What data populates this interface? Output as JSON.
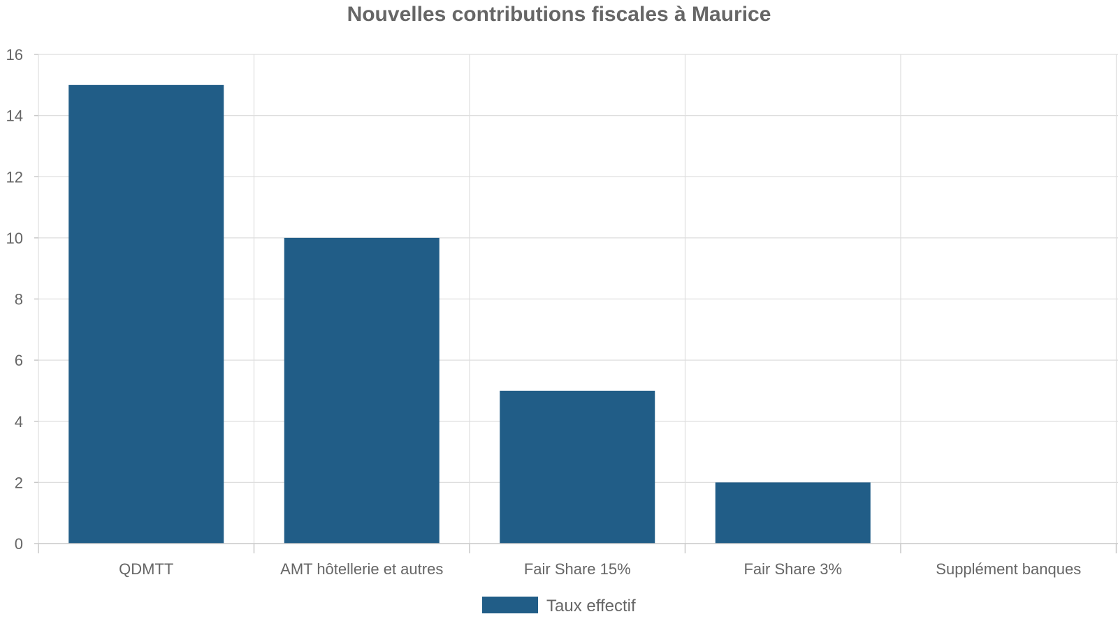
{
  "chart_data": {
    "type": "bar",
    "title": "Nouvelles contributions fiscales à Maurice",
    "categories": [
      "QDMTT",
      "AMT hôtellerie et autres",
      "Fair Share 15%",
      "Fair Share 3%",
      "Supplément banques"
    ],
    "series": [
      {
        "name": "Taux effectif",
        "values": [
          15,
          10,
          5,
          2,
          0
        ],
        "color": "#215d87"
      }
    ],
    "xlabel": "",
    "ylabel": "",
    "ylim": [
      0,
      16
    ],
    "yticks": [
      0,
      2,
      4,
      6,
      8,
      10,
      12,
      14,
      16
    ],
    "grid": true,
    "legend_position": "bottom"
  }
}
